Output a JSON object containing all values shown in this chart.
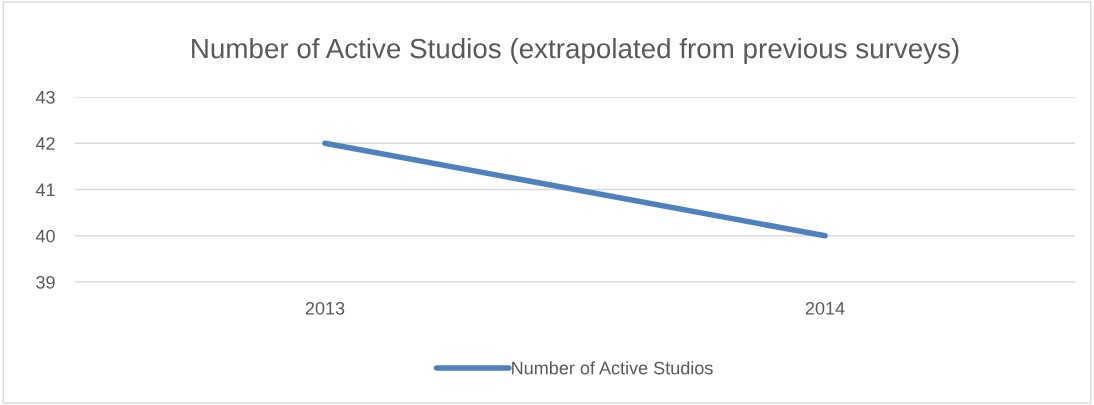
{
  "chart_data": {
    "type": "line",
    "title": "Number of Active Studios (extrapolated from previous surveys)",
    "categories": [
      "2013",
      "2014"
    ],
    "series": [
      {
        "name": "Number of Active Studios",
        "color": "#4f81bd",
        "values": [
          42,
          40
        ]
      }
    ],
    "ylim": [
      39,
      43
    ],
    "yticks": [
      39,
      40,
      41,
      42,
      43
    ],
    "grid": "y",
    "legend": "bottom",
    "marker": "none",
    "line_style": "solid"
  }
}
